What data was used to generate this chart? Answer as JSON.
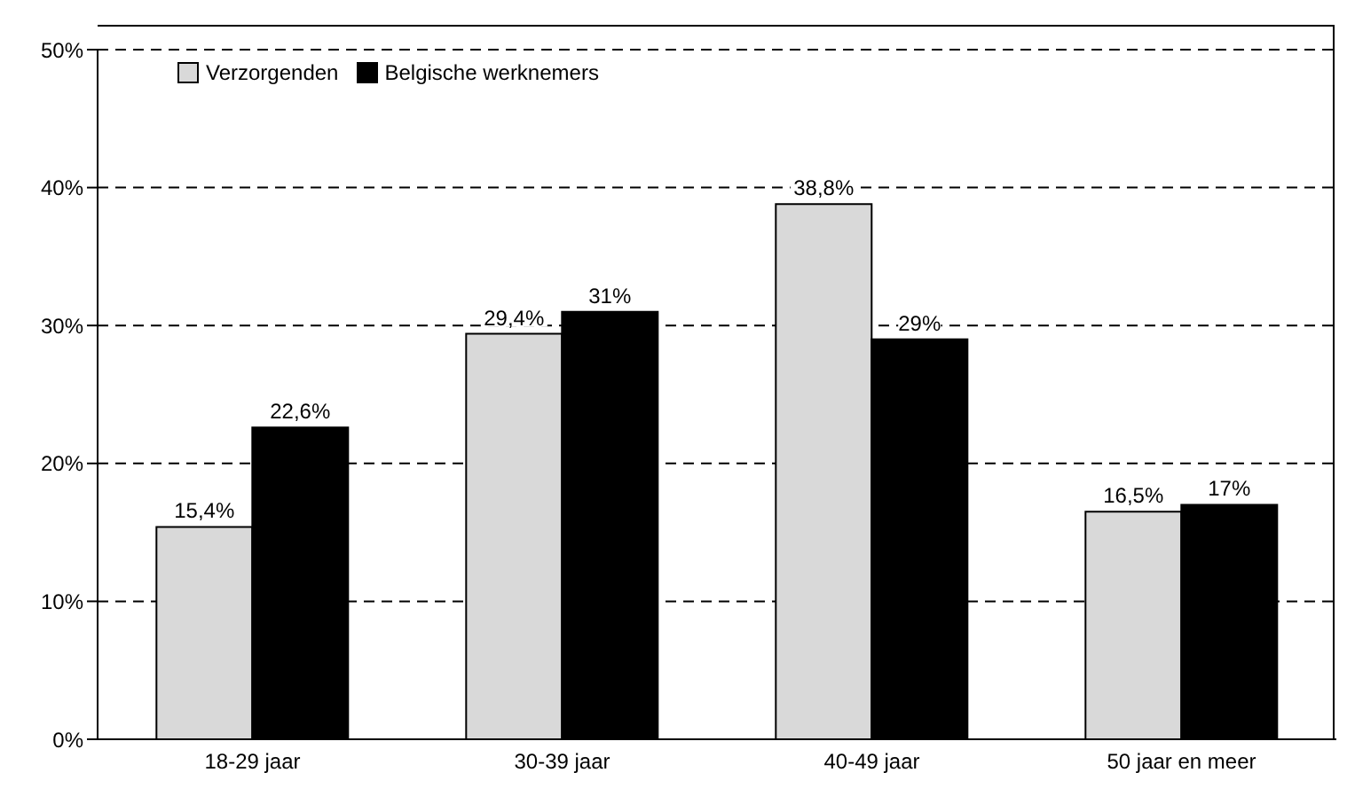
{
  "chart_data": {
    "type": "bar",
    "categories": [
      "18-29 jaar",
      "30-39 jaar",
      "40-49 jaar",
      "50 jaar en meer"
    ],
    "series": [
      {
        "name": "Verzorgenden",
        "color": "#d9d9d9",
        "values": [
          15.4,
          29.4,
          38.8,
          16.5
        ],
        "value_labels": [
          "15,4%",
          "29,4%",
          "38,8%",
          "16,5%"
        ]
      },
      {
        "name": "Belgische werknemers",
        "color": "#000000",
        "values": [
          22.6,
          31,
          29,
          17
        ],
        "value_labels": [
          "22,6%",
          "31%",
          "29%",
          "17%"
        ]
      }
    ],
    "ylim": [
      0,
      50
    ],
    "yticks": [
      {
        "value": 0,
        "label": "0%"
      },
      {
        "value": 10,
        "label": "10%"
      },
      {
        "value": 20,
        "label": "20%"
      },
      {
        "value": 30,
        "label": "30%"
      },
      {
        "value": 40,
        "label": "40%"
      },
      {
        "value": 50,
        "label": "50%"
      }
    ],
    "grid": "y",
    "legend": "top left"
  }
}
